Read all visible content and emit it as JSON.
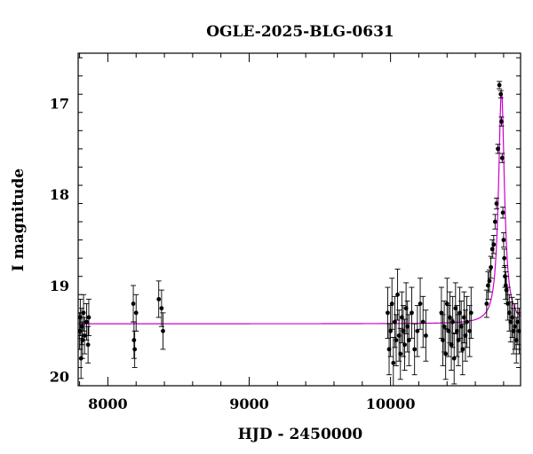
{
  "chart_data": {
    "type": "scatter",
    "title": "OGLE-2025-BLG-0631",
    "xlabel": "HJD - 2450000",
    "ylabel": "I magnitude",
    "xlim": [
      7790,
      10920
    ],
    "ylim": [
      20.1,
      16.45
    ],
    "y_inverted": true,
    "x_ticks": [
      "8000",
      "9000",
      "10000"
    ],
    "y_ticks": [
      "17",
      "18",
      "19",
      "20"
    ],
    "grid": false,
    "colors": {
      "points": "#000000",
      "model": "#cc00cc",
      "axes": "#000000"
    },
    "series": [
      {
        "kind": "points_with_errorbars",
        "x": [
          7800,
          7805,
          7810,
          7815,
          7820,
          7828,
          7835,
          7850,
          7860,
          7865,
          8180,
          8185,
          8190,
          8200,
          8360,
          8380,
          8390,
          9980,
          9990,
          10000,
          10010,
          10020,
          10030,
          10040,
          10050,
          10060,
          10070,
          10080,
          10090,
          10100,
          10110,
          10120,
          10130,
          10150,
          10170,
          10190,
          10210,
          10230,
          10250,
          10360,
          10370,
          10380,
          10390,
          10400,
          10410,
          10420,
          10430,
          10440,
          10450,
          10460,
          10470,
          10480,
          10490,
          10500,
          10510,
          10520,
          10530,
          10540,
          10560,
          10570,
          10680,
          10690,
          10700,
          10710,
          10720,
          10730,
          10740,
          10750,
          10760,
          10770,
          10780,
          10785,
          10790,
          10795,
          10800,
          10805,
          10810,
          10815,
          10820,
          10830,
          10840,
          10850,
          10860,
          10870,
          10880,
          10890,
          10900,
          10910
        ],
        "y": [
          19.5,
          19.35,
          19.8,
          19.45,
          19.6,
          19.3,
          19.55,
          19.4,
          19.65,
          19.35,
          19.2,
          19.6,
          19.7,
          19.3,
          19.15,
          19.25,
          19.5,
          19.3,
          19.7,
          19.5,
          19.2,
          19.85,
          19.4,
          19.6,
          19.1,
          19.55,
          19.75,
          19.35,
          19.5,
          19.65,
          19.25,
          19.45,
          19.6,
          19.3,
          19.7,
          19.5,
          19.2,
          19.4,
          19.55,
          19.3,
          19.6,
          19.45,
          19.75,
          19.2,
          19.5,
          19.35,
          19.65,
          19.4,
          19.8,
          19.25,
          19.5,
          19.6,
          19.3,
          19.45,
          19.7,
          19.35,
          19.55,
          19.4,
          19.5,
          19.3,
          19.2,
          19.0,
          18.95,
          18.8,
          18.6,
          18.55,
          18.3,
          18.1,
          17.5,
          16.8,
          16.9,
          17.2,
          17.6,
          18.2,
          18.5,
          18.7,
          18.9,
          19.0,
          19.05,
          19.2,
          19.3,
          19.4,
          19.35,
          19.5,
          19.45,
          19.6,
          19.4,
          19.5
        ],
        "err": [
          0.2,
          0.2,
          0.22,
          0.2,
          0.2,
          0.2,
          0.2,
          0.2,
          0.2,
          0.2,
          0.2,
          0.2,
          0.2,
          0.2,
          0.2,
          0.2,
          0.2,
          0.28,
          0.28,
          0.28,
          0.28,
          0.28,
          0.28,
          0.28,
          0.28,
          0.28,
          0.28,
          0.28,
          0.28,
          0.28,
          0.28,
          0.28,
          0.28,
          0.28,
          0.28,
          0.28,
          0.28,
          0.28,
          0.28,
          0.28,
          0.28,
          0.28,
          0.28,
          0.28,
          0.28,
          0.28,
          0.28,
          0.28,
          0.28,
          0.28,
          0.28,
          0.28,
          0.28,
          0.28,
          0.28,
          0.28,
          0.28,
          0.28,
          0.28,
          0.28,
          0.15,
          0.15,
          0.12,
          0.12,
          0.1,
          0.1,
          0.08,
          0.06,
          0.05,
          0.04,
          0.04,
          0.05,
          0.05,
          0.06,
          0.08,
          0.1,
          0.12,
          0.15,
          0.15,
          0.18,
          0.2,
          0.22,
          0.22,
          0.25,
          0.25,
          0.25,
          0.25,
          0.25
        ]
      },
      {
        "kind": "model_curve",
        "baseline": 19.42,
        "peak_x": 10785,
        "peak_y": 16.85,
        "width_days": 25
      }
    ]
  }
}
